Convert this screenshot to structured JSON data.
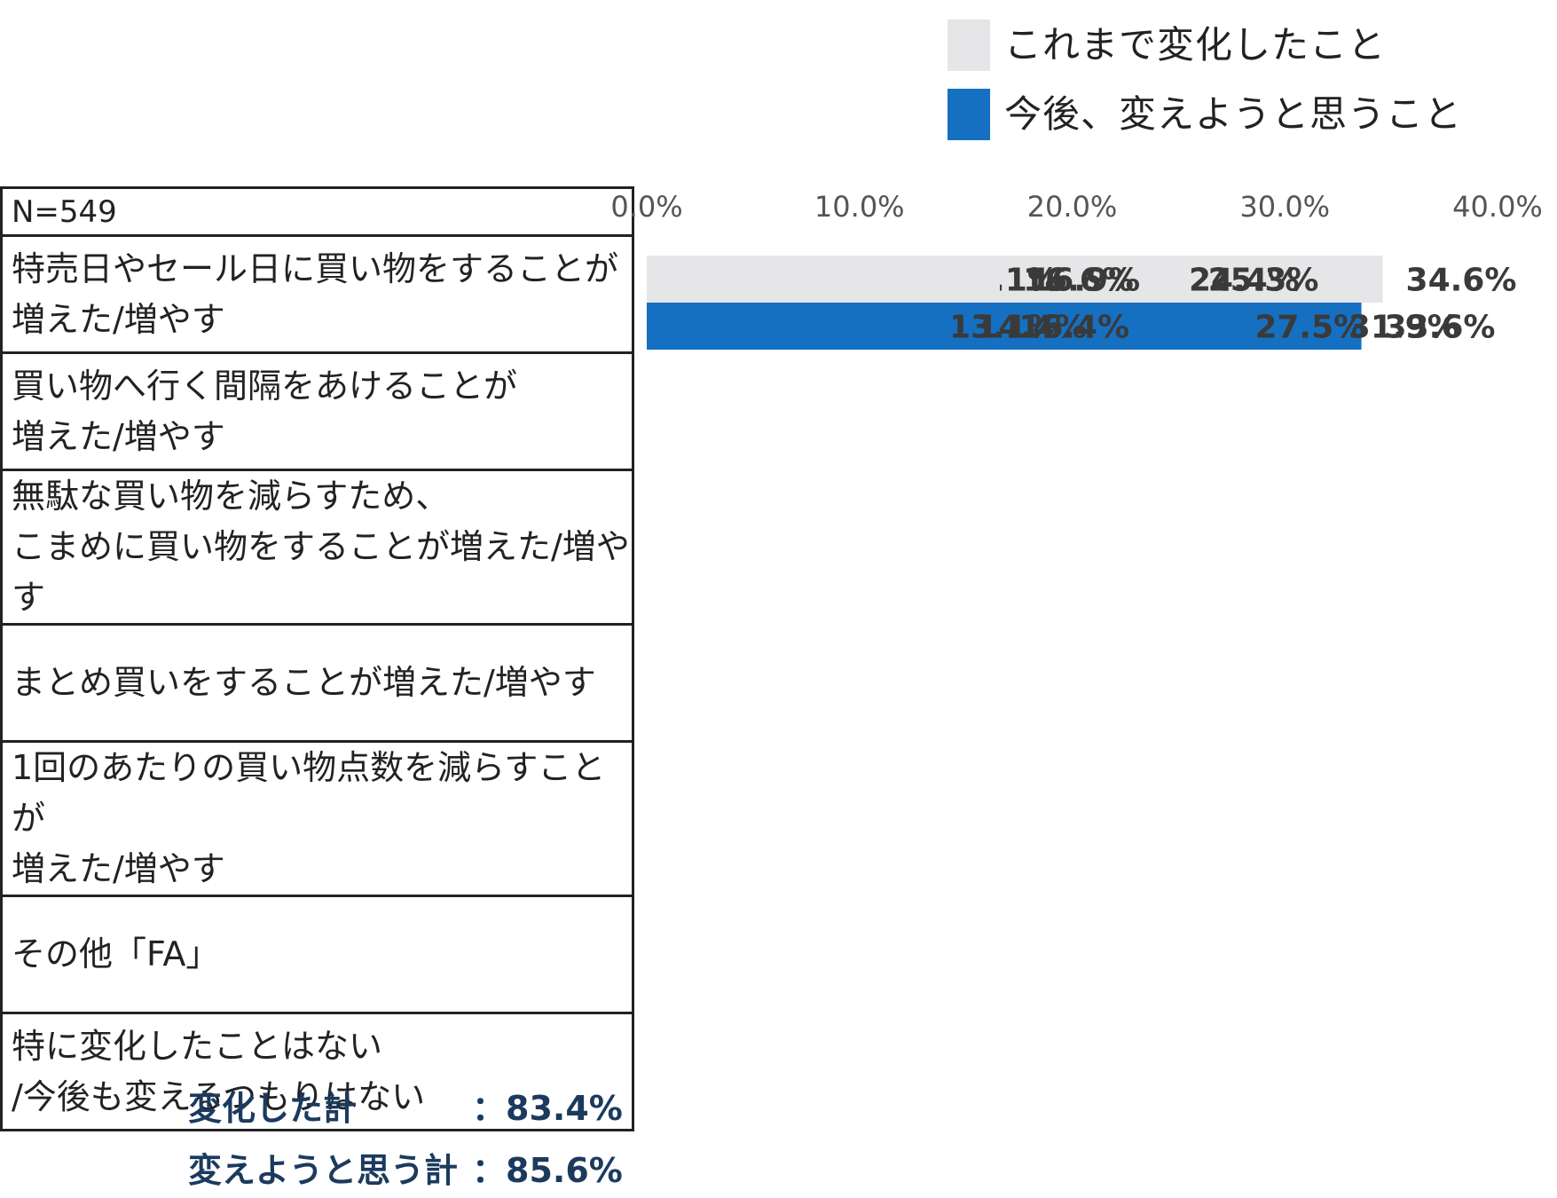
{
  "colors": {
    "past": "#e6e6e8",
    "future": "#1570c2"
  },
  "legend": [
    {
      "label": "これまで変化したこと",
      "color": "#e6e6e8"
    },
    {
      "label": "今後、変えようと思うこと",
      "color": "#1570c2"
    }
  ],
  "table": {
    "header": "N=549"
  },
  "chart_data": {
    "type": "bar",
    "orientation": "horizontal",
    "categories": [
      "特売日やセール日に買い物をすることが\n増えた/増やす",
      "買い物へ行く間隔をあけることが\n増えた/増やす",
      "無駄な買い物を減らすため、\nこまめに買い物をすることが増えた/増やす",
      "まとめ買いをすることが増えた/増やす",
      "1回のあたりの買い物点数を減らすことが\n増えた/増やす",
      "その他「FA」",
      "特に変化したことはない\n/今後も変えるつもりはない"
    ],
    "series": [
      {
        "name": "これまで変化したこと",
        "values": [
          34.6,
          25.3,
          24.4,
          16.9,
          13.1,
          1.3,
          16.6
        ],
        "labels": [
          "34.6%",
          "25.3%",
          "24.4%",
          "16.9%",
          "13.1%",
          "1.3%",
          "16.6%"
        ]
      },
      {
        "name": "今後、変えようと思うこと",
        "values": [
          33.6,
          31.9,
          27.5,
          16.4,
          13.1,
          1.3,
          14.4
        ],
        "labels": [
          "33.6%",
          "31.9%",
          "27.5%",
          "16.4%",
          "13.1%",
          "1.3%",
          "14.4%"
        ]
      }
    ],
    "xlim": [
      0,
      40
    ],
    "xticks": [
      "0.0%",
      "10.0%",
      "20.0%",
      "30.0%",
      "40.0%"
    ],
    "grid": false,
    "legend_position": "top-right"
  },
  "summary": [
    {
      "label": "変化した計",
      "value": "：83.4%"
    },
    {
      "label": "変えようと思う計",
      "value": "：85.6%"
    }
  ]
}
